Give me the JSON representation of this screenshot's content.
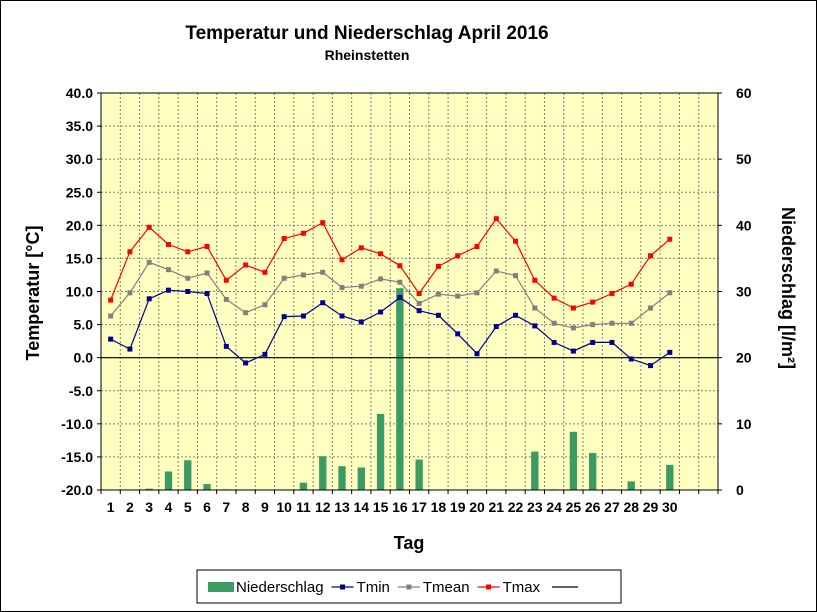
{
  "chart_data": {
    "type": "bar+line",
    "title": "Temperatur und Niederschlag April 2016",
    "subtitle": "Rheinstetten",
    "xlabel": "Tag",
    "ylabel_left": "Temperatur [°C]",
    "ylabel_right": "Niederschlag [l/m²]",
    "y_left_range": [
      -20,
      40
    ],
    "y_right_range": [
      0,
      60
    ],
    "y_left_ticks": [
      "40.0",
      "35.0",
      "30.0",
      "25.0",
      "20.0",
      "15.0",
      "10.0",
      "5.0",
      "0.0",
      "-5.0",
      "-10.0",
      "-15.0",
      "-20.0"
    ],
    "y_right_ticks": [
      "60",
      "50",
      "40",
      "30",
      "20",
      "10",
      "0"
    ],
    "x_ticks": [
      "1",
      "2",
      "3",
      "4",
      "5",
      "6",
      "7",
      "8",
      "9",
      "10",
      "11",
      "12",
      "13",
      "14",
      "15",
      "16",
      "17",
      "18",
      "19",
      "20",
      "21",
      "22",
      "23",
      "24",
      "25",
      "26",
      "27",
      "28",
      "29",
      "30"
    ],
    "grid": true,
    "legend_position": "bottom",
    "colors": {
      "plot_bg": "#ffffc0",
      "grid": "#808080",
      "bar": "#3c9b63",
      "tmin": "#00008b",
      "tmean": "#808080",
      "tmax": "#ff0000",
      "zero_line": "#000000"
    },
    "series": [
      {
        "name": "Niederschlag",
        "type": "bar",
        "axis": "right",
        "values": [
          0,
          0,
          0.2,
          2.8,
          4.5,
          0.9,
          0.1,
          0,
          0,
          0,
          1.1,
          5.1,
          3.6,
          3.4,
          11.5,
          30.5,
          4.6,
          0,
          0,
          0,
          0,
          0,
          5.8,
          0.1,
          8.8,
          5.6,
          0.1,
          1.3,
          0,
          3.8
        ]
      },
      {
        "name": "Tmin",
        "type": "line",
        "axis": "left",
        "values": [
          2.8,
          1.3,
          8.9,
          10.2,
          10.0,
          9.7,
          1.7,
          -0.8,
          0.5,
          6.2,
          6.3,
          8.3,
          6.3,
          5.4,
          6.9,
          9.1,
          7.1,
          6.4,
          3.6,
          0.6,
          4.7,
          6.4,
          4.8,
          2.3,
          1.0,
          2.3,
          2.3,
          -0.2,
          -1.2,
          0.8
        ]
      },
      {
        "name": "Tmean",
        "type": "line",
        "axis": "left",
        "values": [
          6.3,
          9.8,
          14.4,
          13.3,
          12.0,
          12.8,
          8.8,
          6.8,
          8.0,
          12.0,
          12.5,
          12.9,
          10.6,
          10.8,
          11.9,
          11.4,
          8.2,
          9.6,
          9.3,
          9.8,
          13.1,
          12.4,
          7.5,
          5.2,
          4.5,
          5.0,
          5.2,
          5.2,
          7.5,
          9.8
        ]
      },
      {
        "name": "Tmax",
        "type": "line",
        "axis": "left",
        "values": [
          8.7,
          16.0,
          19.7,
          17.1,
          16.0,
          16.8,
          11.7,
          14.0,
          12.9,
          18.0,
          18.8,
          20.4,
          14.8,
          16.6,
          15.7,
          13.9,
          9.7,
          13.8,
          15.4,
          16.8,
          21.0,
          17.6,
          11.7,
          9.0,
          7.5,
          8.4,
          9.7,
          11.1,
          15.4,
          17.9
        ]
      }
    ]
  }
}
